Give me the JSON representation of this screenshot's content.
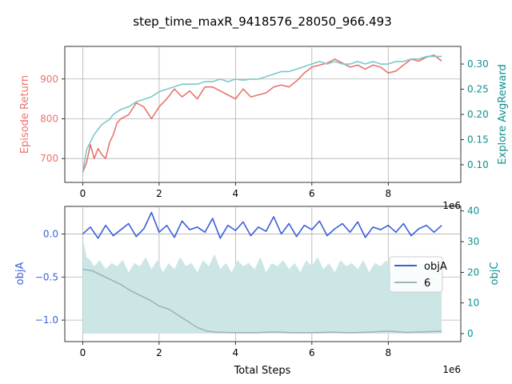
{
  "title": "step_time_maxR_9418576_28050_966.493",
  "colors": {
    "ret": "#e8736f",
    "explore": "#7ec8c8",
    "objA": "#3a5fd9",
    "objC_fill": "#cce6e6",
    "six": "#9fb5b5",
    "left_label_top": "#e8736f",
    "right_label": "#108f8f",
    "left_label_bottom": "#3a5fd9",
    "grid": "#b0b0b0"
  },
  "chart_data": [
    {
      "type": "line",
      "name": "top",
      "xlabel": "",
      "ylabel": "Episode Return",
      "y2label": "Explore AvgReward",
      "x_offset_label": "1e6",
      "xlim": [
        -0.47,
        9.9
      ],
      "ylim": [
        640,
        982
      ],
      "y2lim": [
        0.065,
        0.335
      ],
      "xticks": [
        0,
        2,
        4,
        6,
        8
      ],
      "yticks": [
        700,
        800,
        900
      ],
      "y2ticks": [
        0.1,
        0.15,
        0.2,
        0.25,
        0.3
      ],
      "series": [
        {
          "axis": "left",
          "x": [
            0,
            0.1,
            0.2,
            0.3,
            0.4,
            0.5,
            0.6,
            0.7,
            0.8,
            0.9,
            1.0,
            1.2,
            1.4,
            1.6,
            1.8,
            2.0,
            2.2,
            2.4,
            2.6,
            2.8,
            3.0,
            3.2,
            3.4,
            3.6,
            3.8,
            4.0,
            4.2,
            4.4,
            4.6,
            4.8,
            5.0,
            5.2,
            5.4,
            5.6,
            5.8,
            6.0,
            6.2,
            6.4,
            6.6,
            6.8,
            7.0,
            7.2,
            7.4,
            7.6,
            7.8,
            8.0,
            8.2,
            8.4,
            8.6,
            8.8,
            9.0,
            9.2,
            9.4
          ],
          "y": [
            665,
            690,
            735,
            700,
            725,
            710,
            700,
            740,
            760,
            790,
            800,
            810,
            840,
            830,
            800,
            830,
            850,
            875,
            855,
            870,
            850,
            880,
            880,
            870,
            860,
            850,
            875,
            855,
            860,
            865,
            880,
            885,
            880,
            895,
            915,
            930,
            935,
            940,
            950,
            940,
            930,
            935,
            925,
            935,
            930,
            915,
            920,
            935,
            950,
            945,
            955,
            960,
            945
          ]
        },
        {
          "axis": "right",
          "x": [
            0,
            0.1,
            0.2,
            0.3,
            0.4,
            0.5,
            0.6,
            0.7,
            0.8,
            0.9,
            1.0,
            1.2,
            1.4,
            1.6,
            1.8,
            2.0,
            2.2,
            2.4,
            2.6,
            2.8,
            3.0,
            3.2,
            3.4,
            3.6,
            3.8,
            4.0,
            4.2,
            4.4,
            4.6,
            4.8,
            5.0,
            5.2,
            5.4,
            5.6,
            5.8,
            6.0,
            6.2,
            6.4,
            6.6,
            6.8,
            7.0,
            7.2,
            7.4,
            7.6,
            7.8,
            8.0,
            8.2,
            8.4,
            8.6,
            8.8,
            9.0,
            9.2,
            9.4
          ],
          "y": [
            0.085,
            0.13,
            0.145,
            0.16,
            0.17,
            0.18,
            0.185,
            0.19,
            0.2,
            0.205,
            0.21,
            0.215,
            0.225,
            0.23,
            0.235,
            0.245,
            0.25,
            0.255,
            0.26,
            0.26,
            0.26,
            0.265,
            0.265,
            0.27,
            0.265,
            0.27,
            0.268,
            0.27,
            0.27,
            0.275,
            0.28,
            0.285,
            0.285,
            0.29,
            0.295,
            0.3,
            0.305,
            0.3,
            0.305,
            0.3,
            0.3,
            0.305,
            0.3,
            0.305,
            0.3,
            0.3,
            0.305,
            0.305,
            0.31,
            0.31,
            0.315,
            0.315,
            0.315
          ]
        }
      ]
    },
    {
      "type": "line",
      "name": "bottom",
      "xlabel": "Total Steps",
      "ylabel": "objA",
      "y2label": "objC",
      "x_offset_label": "1e6",
      "xlim": [
        -0.47,
        9.9
      ],
      "ylim": [
        -1.25,
        0.32
      ],
      "y2lim": [
        -2.6,
        41.5
      ],
      "xticks": [
        0,
        2,
        4,
        6,
        8
      ],
      "yticks": [
        0.0,
        -0.5,
        -1.0
      ],
      "ytick_labels": [
        "0.0",
        "−0.5",
        "−1.0"
      ],
      "y2ticks": [
        0,
        10,
        20,
        30,
        40
      ],
      "legend": {
        "position": "right",
        "entries": [
          "objA",
          "6"
        ]
      },
      "series": [
        {
          "name": "objA",
          "axis": "left",
          "x": [
            0,
            0.2,
            0.4,
            0.6,
            0.8,
            1.0,
            1.2,
            1.4,
            1.6,
            1.8,
            2.0,
            2.2,
            2.4,
            2.6,
            2.8,
            3.0,
            3.2,
            3.4,
            3.6,
            3.8,
            4.0,
            4.2,
            4.4,
            4.6,
            4.8,
            5.0,
            5.2,
            5.4,
            5.6,
            5.8,
            6.0,
            6.2,
            6.4,
            6.6,
            6.8,
            7.0,
            7.2,
            7.4,
            7.6,
            7.8,
            8.0,
            8.2,
            8.4,
            8.6,
            8.8,
            9.0,
            9.2,
            9.4
          ],
          "y": [
            0.0,
            0.08,
            -0.05,
            0.1,
            -0.02,
            0.05,
            0.12,
            -0.03,
            0.06,
            0.25,
            0.02,
            0.1,
            -0.04,
            0.15,
            0.05,
            0.08,
            0.02,
            0.18,
            -0.05,
            0.1,
            0.04,
            0.14,
            -0.02,
            0.08,
            0.03,
            0.2,
            0.0,
            0.12,
            -0.03,
            0.1,
            0.05,
            0.15,
            -0.02,
            0.06,
            0.12,
            0.02,
            0.14,
            -0.04,
            0.08,
            0.05,
            0.1,
            0.02,
            0.12,
            -0.02,
            0.06,
            0.1,
            0.02,
            0.1
          ]
        },
        {
          "name": "6",
          "axis": "right",
          "x": [
            0,
            0.25,
            0.5,
            0.75,
            1.0,
            1.25,
            1.5,
            1.75,
            2.0,
            2.25,
            2.5,
            2.75,
            3.0,
            3.25,
            3.5,
            4.0,
            4.5,
            5.0,
            5.5,
            6.0,
            6.5,
            7.0,
            7.5,
            8.0,
            8.5,
            9.0,
            9.4
          ],
          "y": [
            21,
            20.5,
            19,
            17.5,
            16,
            14,
            12.5,
            11,
            9,
            8,
            6,
            4,
            2,
            0.8,
            0.5,
            0.3,
            0.3,
            0.6,
            0.3,
            0.3,
            0.5,
            0.3,
            0.5,
            0.8,
            0.4,
            0.6,
            0.8
          ]
        },
        {
          "name": "objC",
          "axis": "right",
          "type": "area",
          "x": [
            0,
            0.1,
            0.2,
            0.3,
            0.45,
            0.6,
            0.75,
            0.9,
            1.05,
            1.2,
            1.35,
            1.5,
            1.65,
            1.8,
            1.95,
            2.1,
            2.25,
            2.4,
            2.55,
            2.7,
            2.85,
            3.0,
            3.15,
            3.3,
            3.45,
            3.6,
            3.75,
            3.9,
            4.05,
            4.2,
            4.35,
            4.5,
            4.65,
            4.8,
            4.95,
            5.1,
            5.25,
            5.4,
            5.55,
            5.7,
            5.85,
            6.0,
            6.15,
            6.3,
            6.45,
            6.6,
            6.75,
            6.9,
            7.05,
            7.2,
            7.35,
            7.5,
            7.65,
            7.8,
            7.95,
            8.1,
            8.25,
            8.4,
            8.55,
            8.7,
            8.85,
            9.0,
            9.15,
            9.3,
            9.4
          ],
          "y": [
            31,
            25,
            24,
            22,
            24,
            21,
            23,
            22,
            24,
            20,
            23,
            22,
            25,
            21,
            24,
            20,
            23,
            21,
            25,
            22,
            23,
            20,
            24,
            22,
            26,
            21,
            23,
            20,
            24,
            22,
            23,
            21,
            25,
            20,
            23,
            22,
            24,
            21,
            23,
            20,
            24,
            22,
            25,
            21,
            23,
            20,
            24,
            22,
            23,
            21,
            24,
            20,
            23,
            22,
            24,
            19,
            23,
            21,
            25,
            20,
            23,
            21,
            24,
            20,
            22
          ]
        }
      ]
    }
  ]
}
